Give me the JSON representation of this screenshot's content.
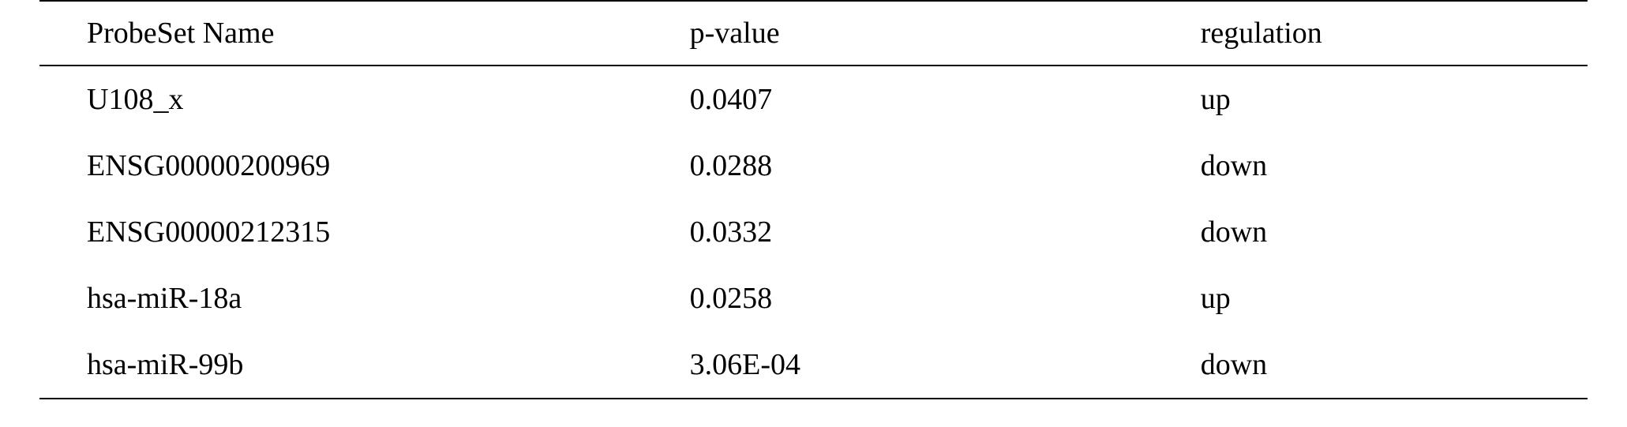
{
  "table": {
    "type": "table",
    "columns": [
      {
        "label": "ProbeSet Name",
        "class": "col1"
      },
      {
        "label": "p-value",
        "class": "col2"
      },
      {
        "label": "regulation",
        "class": "col3"
      }
    ],
    "rows": [
      {
        "name": "U108_x",
        "pvalue": "0.0407",
        "regulation": "up",
        "name_class": "serif-latin"
      },
      {
        "name": "ENSG00000200969",
        "pvalue": "0.0288",
        "regulation": "down",
        "name_class": ""
      },
      {
        "name": "ENSG00000212315",
        "pvalue": "0.0332",
        "regulation": "down",
        "name_class": ""
      },
      {
        "name": "hsa-miR-18a",
        "pvalue": "0.0258",
        "regulation": "up",
        "name_class": ""
      },
      {
        "name": "hsa-miR-99b",
        "pvalue": "3.06E-04",
        "regulation": "down",
        "name_class": ""
      }
    ],
    "style": {
      "font_size": 38,
      "text_color": "#000000",
      "background_color": "#ffffff",
      "border_color": "#000000",
      "border_width": 2,
      "row_padding_v": 20,
      "header_padding_v": 18,
      "col1_padding_left": 60,
      "col_widths_pct": [
        42,
        33,
        25
      ]
    }
  }
}
